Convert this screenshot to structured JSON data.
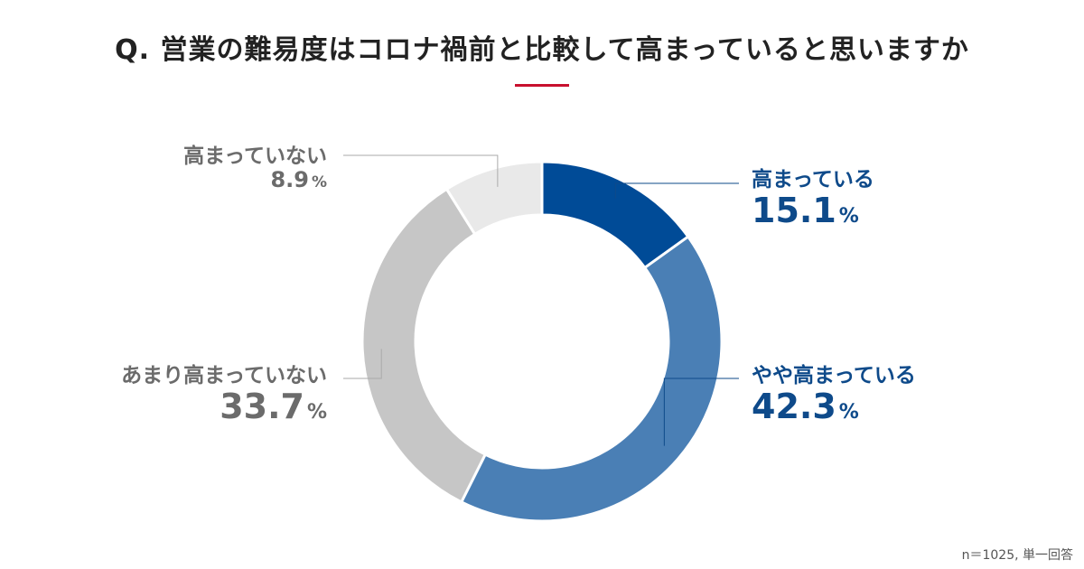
{
  "chart_data": {
    "type": "pie",
    "title": "Q. 営業の難易度はコロナ禍前と比較して高まっていると思いますか",
    "unit": "%",
    "slices": [
      {
        "label": "高まっている",
        "value": 15.1,
        "display": "15.1",
        "color": "#004b97"
      },
      {
        "label": "やや高まっている",
        "value": 42.3,
        "display": "42.3",
        "color": "#4a7fb5"
      },
      {
        "label": "あまり高まっていない",
        "value": 33.7,
        "display": "33.7",
        "color": "#c6c6c6"
      },
      {
        "label": "高まっていない",
        "value": 8.9,
        "display": "8.9",
        "color": "#e9e9e9"
      }
    ],
    "note": "n＝1025, 単一回答"
  },
  "colors": {
    "accent": "#c8102e",
    "label_blue": "#0e4a8a",
    "label_gray": "#6b6b6b",
    "leader_line": "#aaaaaa"
  }
}
